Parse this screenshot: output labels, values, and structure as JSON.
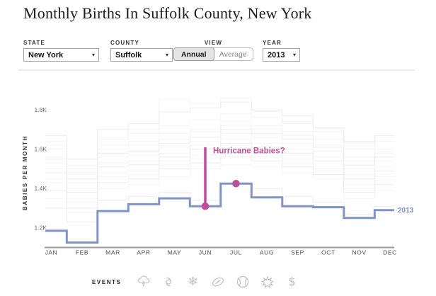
{
  "title": "Monthly Births In Suffolk County, New York",
  "controls": {
    "state": {
      "label": "STATE",
      "value": "New York"
    },
    "county": {
      "label": "COUNTY",
      "value": "Suffolk"
    },
    "view": {
      "label": "VIEW",
      "options": [
        "Annual",
        "Average"
      ],
      "selected": "Annual"
    },
    "year": {
      "label": "YEAR",
      "value": "2013"
    }
  },
  "chart_data": {
    "type": "line",
    "step": true,
    "title": "Monthly Births In Suffolk County, New York",
    "categories": [
      "JAN",
      "FEB",
      "MAR",
      "APR",
      "MAY",
      "JUN",
      "JUL",
      "AUG",
      "SEP",
      "OCT",
      "NOV",
      "DEC"
    ],
    "series": [
      {
        "name": "2013",
        "color": "#8093c7",
        "values": [
          1185,
          1125,
          1285,
          1320,
          1350,
          1310,
          1425,
          1355,
          1310,
          1305,
          1250,
          1290
        ]
      }
    ],
    "background_series": [
      [
        1390,
        1300,
        1430,
        1450,
        1500,
        1530,
        1560,
        1540,
        1510,
        1470,
        1380,
        1420
      ],
      [
        1450,
        1350,
        1480,
        1490,
        1540,
        1570,
        1600,
        1580,
        1550,
        1500,
        1420,
        1460
      ],
      [
        1500,
        1400,
        1530,
        1540,
        1580,
        1620,
        1650,
        1630,
        1600,
        1560,
        1470,
        1510
      ],
      [
        1550,
        1450,
        1580,
        1590,
        1630,
        1660,
        1700,
        1680,
        1650,
        1610,
        1520,
        1560
      ],
      [
        1600,
        1480,
        1620,
        1640,
        1680,
        1700,
        1740,
        1720,
        1690,
        1650,
        1560,
        1600
      ],
      [
        1640,
        1520,
        1660,
        1680,
        1720,
        1750,
        1780,
        1760,
        1730,
        1690,
        1600,
        1640
      ],
      [
        1670,
        1550,
        1700,
        1730,
        1790,
        1810,
        1840,
        1800,
        1770,
        1710,
        1640,
        1670
      ],
      [
        1620,
        1500,
        1650,
        1700,
        1855,
        1830,
        1860,
        1790,
        1740,
        1700,
        1630,
        1660
      ],
      [
        1430,
        1330,
        1460,
        1470,
        1520,
        1550,
        1580,
        1560,
        1530,
        1490,
        1400,
        1440
      ],
      [
        1480,
        1380,
        1510,
        1520,
        1560,
        1600,
        1630,
        1610,
        1580,
        1540,
        1450,
        1490
      ],
      [
        1530,
        1430,
        1560,
        1570,
        1610,
        1640,
        1680,
        1660,
        1630,
        1590,
        1500,
        1540
      ],
      [
        1350,
        1280,
        1400,
        1420,
        1460,
        1500,
        1520,
        1510,
        1480,
        1450,
        1350,
        1390
      ],
      [
        1300,
        1230,
        1340,
        1360,
        1380,
        1340,
        1420,
        1400,
        1360,
        1330,
        1270,
        1310
      ],
      [
        1560,
        1470,
        1600,
        1620,
        1650,
        1690,
        1720,
        1700,
        1670,
        1620,
        1540,
        1580
      ]
    ],
    "background_color": "#ececec",
    "xlabel": "",
    "ylabel": "BABIES PER MONTH",
    "yticks": [
      1200,
      1400,
      1600,
      1800
    ],
    "ytick_labels": [
      "1.2K",
      "1.4K",
      "1.6K",
      "1.8K"
    ],
    "ylim": [
      1080,
      1900
    ],
    "grid": false,
    "axis_color": "#9a9a9a",
    "series_end_label": "2013",
    "annotation": {
      "text": "Hurricane Babies?",
      "color": "#bf4f9d",
      "line_month": "JUN",
      "line_top_value": 1610,
      "dot_months": [
        "JUN",
        "JUL"
      ]
    }
  },
  "events": {
    "label": "EVENTS",
    "icons": [
      "storm-cloud",
      "hurricane",
      "snowflake",
      "football",
      "baseball",
      "fireworks",
      "dollar"
    ]
  },
  "colors": {
    "series_blue": "#8093c7",
    "annotation_pink": "#bf4f9d",
    "background_line_gray": "#ececec",
    "axis_gray": "#9a9a9a",
    "icon_gray": "#bdbdbd"
  }
}
